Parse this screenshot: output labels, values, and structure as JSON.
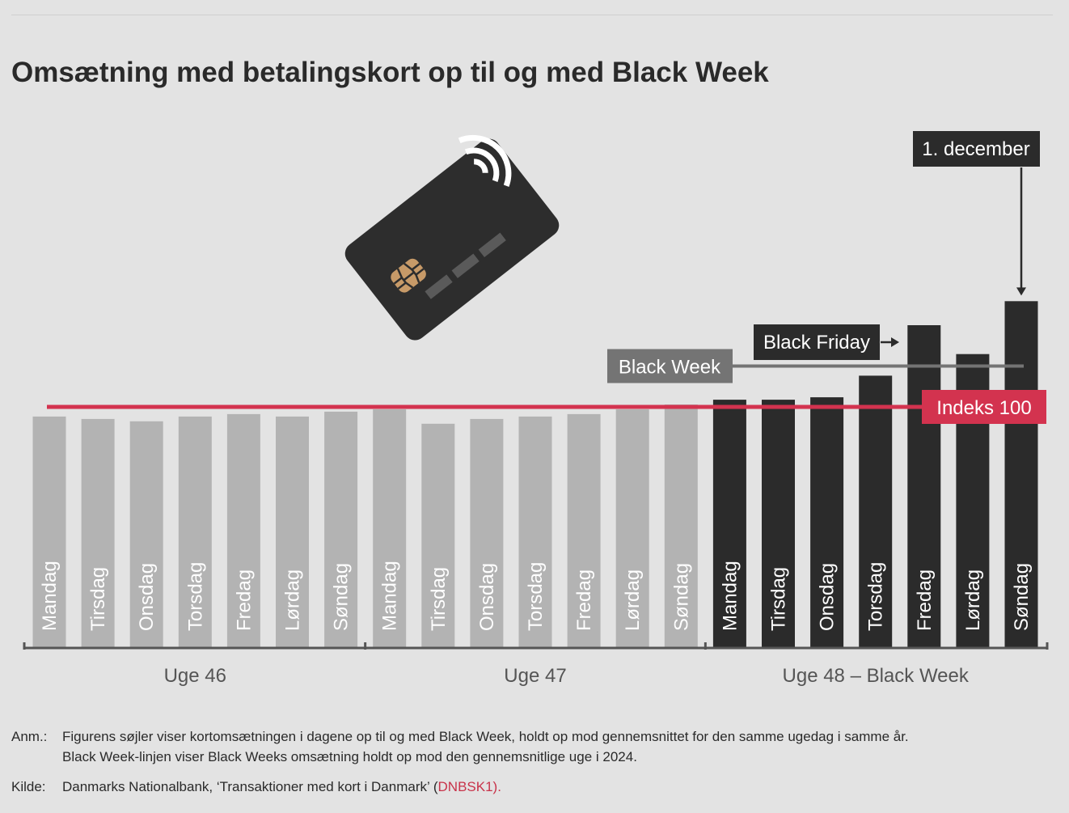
{
  "title": "Omsætning med betalingskort op til og med Black Week",
  "chart_data": {
    "type": "bar",
    "title": "Omsætning med betalingskort op til og med Black Week",
    "xlabel": "",
    "ylabel": "",
    "ylim": [
      0,
      200
    ],
    "grid": false,
    "reference_line": {
      "label": "Indeks 100",
      "value": 100
    },
    "black_week_line": {
      "label": "Black Week",
      "value": 117
    },
    "categories": [
      "Mandag",
      "Tirsdag",
      "Onsdag",
      "Torsdag",
      "Fredag",
      "Lørdag",
      "Søndag",
      "Mandag",
      "Tirsdag",
      "Onsdag",
      "Torsdag",
      "Fredag",
      "Lørdag",
      "Søndag",
      "Mandag",
      "Tirsdag",
      "Onsdag",
      "Torsdag",
      "Fredag",
      "Lørdag",
      "Søndag"
    ],
    "groups": [
      {
        "label": "Uge 46",
        "start": 0,
        "end": 6
      },
      {
        "label": "Uge 47",
        "start": 7,
        "end": 13
      },
      {
        "label": "Uge 48 – Black Week",
        "start": 14,
        "end": 20
      }
    ],
    "values": [
      96,
      95,
      94,
      96,
      97,
      96,
      98,
      99,
      93,
      95,
      96,
      97,
      99,
      101,
      103,
      103,
      104,
      113,
      134,
      122,
      144
    ],
    "colors": {
      "normal": "#b3b3b3",
      "black_week": "#2b2b2b",
      "index_line": "#d3334f",
      "black_week_line": "#747474",
      "axis": "#555555",
      "background": "#e3e3e3"
    },
    "annotations": [
      {
        "label": "Black Friday",
        "target_index": 18
      },
      {
        "label": "1. december",
        "target_index": 20
      }
    ]
  },
  "notes": {
    "anm_label": "Anm.:",
    "anm_text_1": "Figurens søjler viser kortomsætningen i dagene op til og med Black Week, holdt op mod gennemsnittet for den samme ugedag i samme år.",
    "anm_text_2": "Black Week-linjen viser Black Weeks omsætning holdt op mod den gennemsnitlige uge i 2024.",
    "kilde_label": "Kilde:",
    "kilde_text": "Danmarks Nationalbank, ‘Transaktioner med kort i Danmark’ (",
    "kilde_link": "DNBSK1).",
    "kilde_end": ""
  },
  "card_icon": "payment-card-icon"
}
